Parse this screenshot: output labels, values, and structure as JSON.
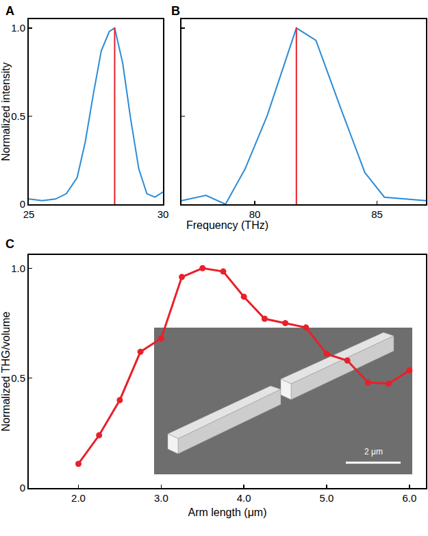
{
  "chart_data": [
    {
      "panel": "A",
      "type": "line",
      "x_label": "Frequency (THz)",
      "y_label": "Normalized intensity",
      "xlim": [
        25,
        30
      ],
      "xticks": [
        25,
        30
      ],
      "ylim": [
        0,
        1.05
      ],
      "yticks": [
        0,
        0.5,
        {
          "value": 1,
          "label": "1.0"
        }
      ],
      "series": [
        {
          "color": "#2b8bd6",
          "x": [
            25,
            25.5,
            26,
            26.4,
            26.8,
            27.1,
            27.4,
            27.7,
            28.0,
            28.2,
            28.5,
            28.8,
            29.1,
            29.4,
            29.7,
            30
          ],
          "values": [
            0.03,
            0.02,
            0.03,
            0.06,
            0.15,
            0.35,
            0.62,
            0.87,
            0.98,
            1.0,
            0.8,
            0.48,
            0.2,
            0.06,
            0.04,
            0.07
          ]
        },
        {
          "color": "#e8202a",
          "x": [
            28.2,
            28.2
          ],
          "values": [
            0,
            1.0
          ]
        }
      ]
    },
    {
      "panel": "B",
      "type": "line",
      "tick_labels": "x",
      "xlim": [
        77,
        87
      ],
      "xticks": [
        80,
        85
      ],
      "ylim": [
        0,
        1.05
      ],
      "yticks": [
        0,
        0.5,
        1
      ],
      "series": [
        {
          "color": "#2b8bd6",
          "x": [
            77,
            78,
            78.8,
            79.6,
            80.5,
            81.7,
            82.5,
            83.5,
            84.5,
            85.3,
            87
          ],
          "values": [
            0.02,
            0.05,
            0.0,
            0.2,
            0.5,
            1.0,
            0.93,
            0.55,
            0.18,
            0.04,
            0.02
          ]
        },
        {
          "color": "#e8202a",
          "x": [
            81.7,
            81.7
          ],
          "values": [
            0,
            1.0
          ]
        }
      ]
    },
    {
      "panel": "C",
      "type": "line",
      "marker": "circle",
      "x_label": "Arm length (μm)",
      "y_label": "Normalized THG/volume",
      "xlim": [
        1.4,
        6.2
      ],
      "xticks": [
        {
          "value": 2,
          "label": "2.0"
        },
        {
          "value": 3,
          "label": "3.0"
        },
        {
          "value": 4,
          "label": "4.0"
        },
        {
          "value": 5,
          "label": "5.0"
        },
        {
          "value": 6,
          "label": "6.0"
        }
      ],
      "ylim": [
        0,
        1.06
      ],
      "yticks": [
        0,
        0.5,
        {
          "value": 1,
          "label": "1.0"
        }
      ],
      "inset": {
        "scale_bar": "2 μm"
      },
      "series": [
        {
          "color": "#e8202a",
          "x": [
            2.0,
            2.25,
            2.5,
            2.75,
            3.0,
            3.25,
            3.5,
            3.75,
            4.0,
            4.25,
            4.5,
            4.75,
            5.0,
            5.25,
            5.5,
            5.75,
            6.0
          ],
          "values": [
            0.11,
            0.24,
            0.4,
            0.62,
            0.68,
            0.96,
            1.0,
            0.985,
            0.87,
            0.77,
            0.75,
            0.73,
            0.61,
            0.58,
            0.48,
            0.475,
            0.535
          ]
        }
      ]
    }
  ]
}
